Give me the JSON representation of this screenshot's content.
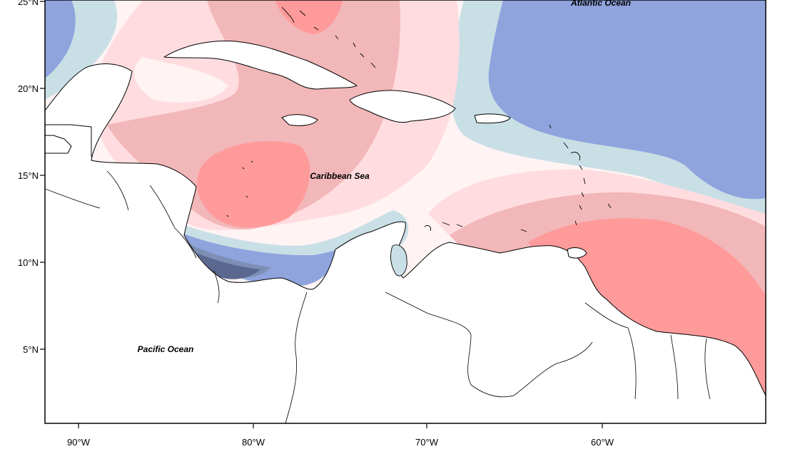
{
  "labels": {
    "atlantic": "Atlantic Ocean",
    "caribbean": "Caribbean Sea",
    "pacific": "Pacific Ocean"
  },
  "axes": {
    "y_ticks": [
      "25°N",
      "20°N",
      "15°N",
      "10°N",
      "5°N"
    ],
    "x_ticks": [
      "90°W",
      "80°W",
      "70°W",
      "60°W"
    ]
  },
  "colors": {
    "deep_blue": "#5a6890",
    "mid_blue": "#7e8fb5",
    "blue": "#8fa3dd",
    "light_blue": "#c9dfe6",
    "near_white": "#fff3f3",
    "light_pink": "#ffdcdf",
    "pink": "#f2b7b8",
    "salmon": "#ff9a9a"
  }
}
